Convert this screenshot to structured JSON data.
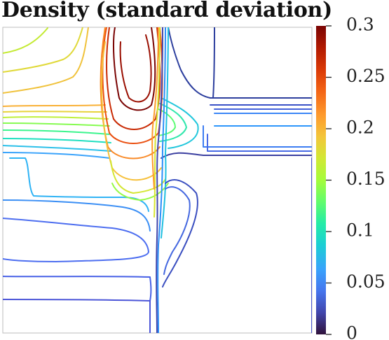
{
  "chart_data": {
    "type": "heatmap",
    "title": "Density (standard deviation)",
    "plot_style": "contour lines",
    "colormap": "turbo",
    "colorbar": {
      "min": 0,
      "max": 0.3,
      "ticks": [
        {
          "value": 0,
          "label": "0"
        },
        {
          "value": 0.05,
          "label": "0.05"
        },
        {
          "value": 0.1,
          "label": "0.1"
        },
        {
          "value": 0.15,
          "label": "0.15"
        },
        {
          "value": 0.2,
          "label": "0.2"
        },
        {
          "value": 0.25,
          "label": "0.25"
        },
        {
          "value": 0.3,
          "label": "0.3"
        }
      ]
    },
    "xlabel": "",
    "ylabel": "",
    "grid": false,
    "legend": "colorbar right"
  }
}
